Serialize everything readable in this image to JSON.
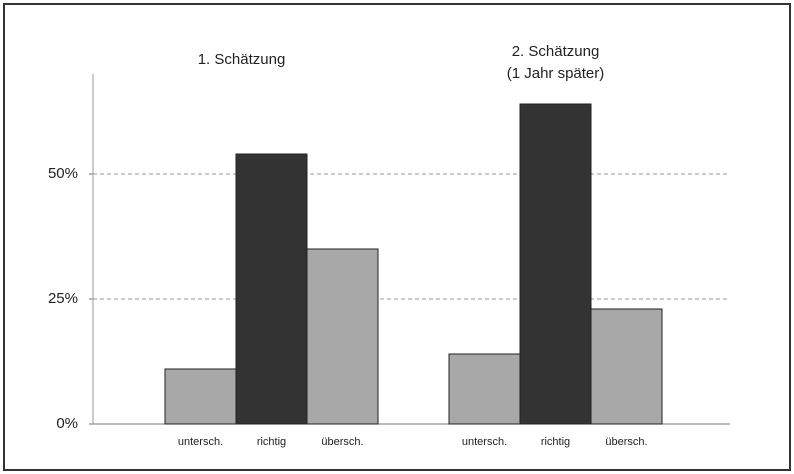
{
  "chart_data": {
    "type": "bar",
    "groups": [
      {
        "title": [
          "1. Schätzung"
        ],
        "categories": [
          "untersch.",
          "richtig",
          "übersch."
        ],
        "values": [
          11,
          54,
          35
        ],
        "colors": [
          "#a8a8a8",
          "#333333",
          "#a8a8a8"
        ]
      },
      {
        "title": [
          "2. Schätzung",
          "(1 Jahr später)"
        ],
        "categories": [
          "untersch.",
          "richtig",
          "übersch."
        ],
        "values": [
          14,
          64,
          23
        ],
        "colors": [
          "#a8a8a8",
          "#333333",
          "#a8a8a8"
        ]
      }
    ],
    "ylim": [
      0,
      70
    ],
    "yticks": [
      {
        "value": 0,
        "label": "0%"
      },
      {
        "value": 25,
        "label": "25%"
      },
      {
        "value": 50,
        "label": "50%"
      }
    ],
    "grid": true
  }
}
